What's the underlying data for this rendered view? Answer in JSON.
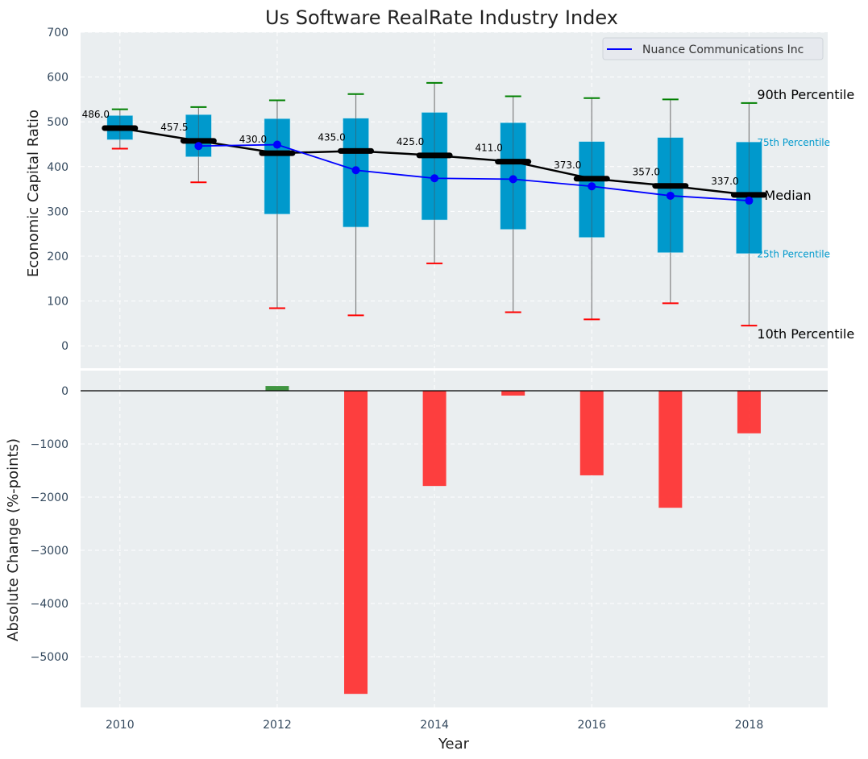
{
  "chart_data": [
    {
      "type": "box",
      "title": "Us Software RealRate Industry Index",
      "xlabel": "",
      "ylabel": "Economic Capital Ratio",
      "ylim": [
        -50,
        700
      ],
      "yticks": [
        0,
        100,
        200,
        300,
        400,
        500,
        600,
        700
      ],
      "xlim": [
        2009.5,
        2019
      ],
      "grid": true,
      "legend": {
        "placement": "top-right",
        "entries": [
          {
            "label": "Nuance Communications Inc",
            "color": "#0000ff"
          }
        ]
      },
      "categories": [
        2010,
        2011,
        2012,
        2013,
        2014,
        2015,
        2016,
        2017,
        2018
      ],
      "series": [
        {
          "name": "90th Percentile",
          "values": [
            528,
            533,
            548,
            562,
            587,
            557,
            553,
            550,
            542
          ],
          "color": "#008000"
        },
        {
          "name": "75th Percentile",
          "values": [
            514,
            516,
            507,
            508,
            521,
            498,
            456,
            465,
            455
          ],
          "color": "#0099cc"
        },
        {
          "name": "Median",
          "values": [
            486.0,
            457.5,
            430.0,
            435.0,
            425.0,
            411.0,
            373.0,
            357.0,
            337.0
          ],
          "color": "#000000"
        },
        {
          "name": "25th Percentile",
          "values": [
            460,
            422,
            294,
            265,
            281,
            260,
            242,
            208,
            206
          ],
          "color": "#0099cc"
        },
        {
          "name": "10th Percentile",
          "values": [
            440,
            365,
            84,
            68,
            184,
            75,
            59,
            95,
            45
          ],
          "color": "#ff0000"
        },
        {
          "name": "Nuance Communications Inc",
          "values": [
            null,
            446,
            449,
            392,
            374,
            372,
            356,
            335,
            324
          ],
          "color": "#0000ff"
        }
      ],
      "median_labels": [
        "486.0",
        "457.5",
        "430.0",
        "435.0",
        "425.0",
        "411.0",
        "373.0",
        "357.0",
        "337.0"
      ],
      "annotations": [
        {
          "text": "90th Percentile",
          "anchor": "90th Percentile",
          "color": "#000000"
        },
        {
          "text": "75th Percentile",
          "anchor": "75th Percentile",
          "color": "#0099cc"
        },
        {
          "text": "Median",
          "anchor": "Median",
          "color": "#000000"
        },
        {
          "text": "25th Percentile",
          "anchor": "25th Percentile",
          "color": "#0099cc"
        },
        {
          "text": "10th Percentile",
          "anchor": "10th Percentile",
          "color": "#000000"
        }
      ]
    },
    {
      "type": "bar",
      "title": "",
      "xlabel": "Year",
      "ylabel": "Absolute Change (%-points)",
      "ylim": [
        -5955,
        379
      ],
      "yticks": [
        0,
        -1000,
        -2000,
        -3000,
        -4000,
        -5000
      ],
      "ytick_labels": [
        "0",
        "−1000",
        "−2000",
        "−3000",
        "−4000",
        "−5000"
      ],
      "xticks": [
        2010,
        2012,
        2014,
        2016,
        2018
      ],
      "xtick_labels": [
        "2010",
        "2012",
        "2014",
        "2016",
        "2018"
      ],
      "xlim": [
        2009.5,
        2019
      ],
      "grid": true,
      "categories": [
        2012,
        2013,
        2014,
        2015,
        2016,
        2017,
        2018
      ],
      "values": [
        90,
        -5700,
        -1790,
        -90,
        -1590,
        -2200,
        -800
      ],
      "positive_color": "#2e8b2e",
      "negative_color": "#ff2a2a"
    }
  ],
  "colors": {
    "plot_background": "#eaeef0",
    "grid": "#ffffff",
    "tick_label": "#34495e",
    "box_fill": "#0099cc",
    "whisker": "#808080"
  }
}
